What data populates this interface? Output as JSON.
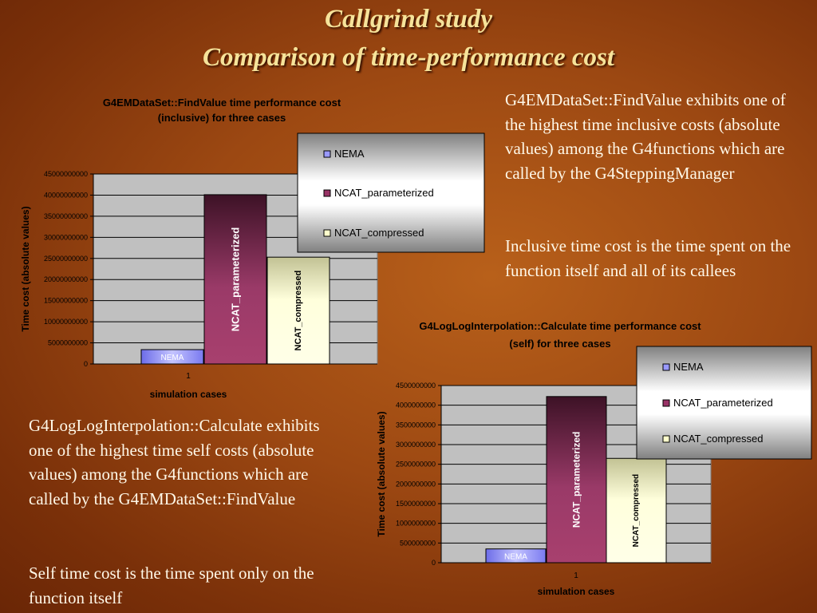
{
  "slide": {
    "title_line1": "Callgrind study",
    "title_line2": "Comparison of time-performance cost",
    "para_top_right_1": "G4EMDataSet::FindValue exhibits one of the highest time inclusive costs (absolute values) among the G4functions which are called by the G4SteppingManager",
    "para_top_right_2": "Inclusive time cost is the time spent on the function itself and all of its callees",
    "para_bottom_left_1": "G4LogLogInterpolation::Calculate exhibits one of the highest time self costs (absolute values) among the G4functions which are called by the G4EMDataSet::FindValue",
    "para_bottom_left_2": "Self time cost is the time spent only on the function itself"
  },
  "colors": {
    "NEMA": "#9999ff",
    "NCAT_parameterized": "#993366",
    "NCAT_compressed": "#ffffcc",
    "plot_bg": "#c0c0c0"
  },
  "chart_data": [
    {
      "type": "bar",
      "title_line1": "G4EMDataSet::FindValue time performance cost",
      "title_line2": "(inclusive) for three cases",
      "xlabel": "simulation cases",
      "ylabel": "Time cost (absolute values)",
      "categories": [
        "1"
      ],
      "ylim": [
        0,
        45000000000
      ],
      "yticks": [
        0,
        5000000000,
        10000000000,
        15000000000,
        20000000000,
        25000000000,
        30000000000,
        35000000000,
        40000000000,
        45000000000
      ],
      "ytick_labels": [
        "0",
        "5000000000",
        "10000000000",
        "15000000000",
        "20000000000",
        "25000000000",
        "30000000000",
        "35000000000",
        "40000000000",
        "45000000000"
      ],
      "legend_placement": "top-right",
      "series": [
        {
          "name": "NEMA",
          "values": [
            3400000000
          ]
        },
        {
          "name": "NCAT_parameterized",
          "values": [
            40100000000
          ]
        },
        {
          "name": "NCAT_compressed",
          "values": [
            25300000000
          ]
        }
      ]
    },
    {
      "type": "bar",
      "title_line1": "G4LogLogInterpolation::Calculate time performance cost",
      "title_line2": "(self) for three cases",
      "xlabel": "simulation cases",
      "ylabel": "Time cost (absolute values)",
      "categories": [
        "1"
      ],
      "ylim": [
        0,
        4500000000
      ],
      "yticks": [
        0,
        500000000,
        1000000000,
        1500000000,
        2000000000,
        2500000000,
        3000000000,
        3500000000,
        4000000000,
        4500000000
      ],
      "ytick_labels": [
        "0",
        "500000000",
        "1000000000",
        "1500000000",
        "2000000000",
        "2500000000",
        "3000000000",
        "3500000000",
        "4000000000",
        "4500000000"
      ],
      "legend_placement": "top-right",
      "series": [
        {
          "name": "NEMA",
          "values": [
            350000000
          ]
        },
        {
          "name": "NCAT_parameterized",
          "values": [
            4220000000
          ]
        },
        {
          "name": "NCAT_compressed",
          "values": [
            2650000000
          ]
        }
      ]
    }
  ]
}
